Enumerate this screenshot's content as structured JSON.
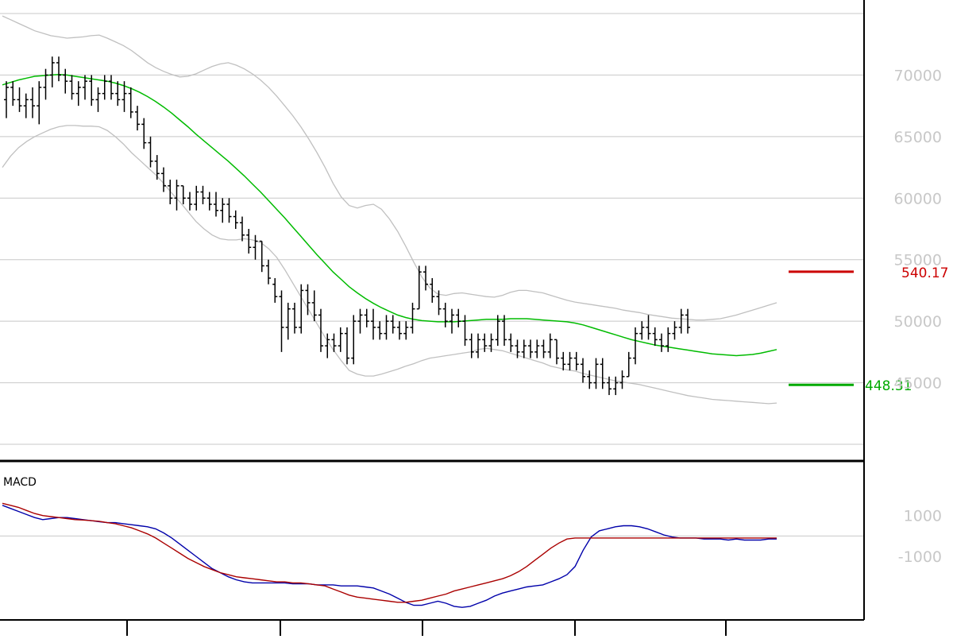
{
  "chart_data": [
    {
      "type": "candlestick",
      "title": "",
      "grid": true,
      "y_ticks": [
        45000,
        50000,
        55000,
        60000,
        65000,
        70000
      ],
      "y_tick_labels": [
        "45000",
        "50000",
        "55000",
        "60000",
        "65000",
        "70000"
      ],
      "ylim": [
        40000,
        75000
      ],
      "x_tick_labels": [
        "",
        "",
        "",
        "",
        ""
      ],
      "levels": [
        {
          "label": "540.17",
          "value": 54017,
          "color": "#cc0000"
        },
        {
          "label": "448.31",
          "value": 44831,
          "color": "#00aa00"
        }
      ],
      "bars": [
        [
          68000,
          69500,
          66500,
          69000
        ],
        [
          69000,
          69500,
          67500,
          68000
        ],
        [
          68000,
          69000,
          67000,
          67500
        ],
        [
          67500,
          68500,
          66500,
          68000
        ],
        [
          68000,
          69000,
          66500,
          67500
        ],
        [
          67500,
          69500,
          66000,
          69000
        ],
        [
          69000,
          70500,
          68000,
          70000
        ],
        [
          70000,
          71500,
          69000,
          71000
        ],
        [
          71000,
          71500,
          69500,
          70000
        ],
        [
          70000,
          70500,
          68500,
          69500
        ],
        [
          69500,
          70000,
          68000,
          68500
        ],
        [
          68500,
          69500,
          67500,
          69000
        ],
        [
          69000,
          70000,
          68000,
          69500
        ],
        [
          69500,
          70000,
          67500,
          68000
        ],
        [
          68000,
          69000,
          67000,
          68500
        ],
        [
          68500,
          70000,
          68000,
          69500
        ],
        [
          69500,
          70000,
          68000,
          68500
        ],
        [
          68500,
          69500,
          67500,
          68000
        ],
        [
          68000,
          69500,
          67000,
          68500
        ],
        [
          68500,
          69000,
          66500,
          67000
        ],
        [
          67000,
          67500,
          65500,
          66000
        ],
        [
          66000,
          66500,
          64000,
          64500
        ],
        [
          64500,
          65000,
          62500,
          63000
        ],
        [
          63000,
          63500,
          61500,
          62000
        ],
        [
          62000,
          62500,
          60500,
          61000
        ],
        [
          61000,
          61500,
          59500,
          60000
        ],
        [
          60000,
          61500,
          59000,
          61000
        ],
        [
          61000,
          61000,
          59500,
          60000
        ],
        [
          60000,
          60500,
          59000,
          59500
        ],
        [
          59500,
          61000,
          59000,
          60500
        ],
        [
          60500,
          61000,
          59500,
          60000
        ],
        [
          60000,
          60500,
          59000,
          59500
        ],
        [
          59500,
          60500,
          58500,
          59000
        ],
        [
          59000,
          60000,
          58000,
          59500
        ],
        [
          59500,
          60000,
          58000,
          58500
        ],
        [
          58500,
          59000,
          57500,
          58000
        ],
        [
          58000,
          58500,
          56500,
          57000
        ],
        [
          57000,
          57500,
          55500,
          56000
        ],
        [
          56000,
          57000,
          55000,
          56500
        ],
        [
          56500,
          56500,
          54000,
          54500
        ],
        [
          54500,
          55000,
          53000,
          53500
        ],
        [
          53000,
          53500,
          51500,
          52000
        ],
        [
          52000,
          52500,
          47500,
          49500
        ],
        [
          49500,
          51500,
          48500,
          51000
        ],
        [
          51000,
          51500,
          49000,
          49500
        ],
        [
          49500,
          53000,
          49000,
          52500
        ],
        [
          52500,
          53000,
          50500,
          51500
        ],
        [
          51500,
          52500,
          50000,
          50500
        ],
        [
          50500,
          51000,
          47500,
          48000
        ],
        [
          48000,
          49000,
          47000,
          48500
        ],
        [
          48500,
          49000,
          47500,
          48000
        ],
        [
          48000,
          49500,
          47500,
          49000
        ],
        [
          49000,
          49500,
          46500,
          47000
        ],
        [
          47000,
          50500,
          46500,
          50000
        ],
        [
          50000,
          51000,
          49000,
          50500
        ],
        [
          50500,
          51000,
          49500,
          50000
        ],
        [
          50000,
          51000,
          48500,
          49500
        ],
        [
          49500,
          50000,
          48500,
          49000
        ],
        [
          49000,
          50500,
          48500,
          50000
        ],
        [
          50000,
          50500,
          49000,
          49500
        ],
        [
          49500,
          50000,
          48500,
          49000
        ],
        [
          49000,
          50000,
          48500,
          49500
        ],
        [
          49500,
          51500,
          49000,
          51000
        ],
        [
          51000,
          54500,
          51000,
          54000
        ],
        [
          54000,
          54500,
          52500,
          53000
        ],
        [
          53000,
          53500,
          51500,
          52000
        ],
        [
          52000,
          52500,
          50500,
          51000
        ],
        [
          51000,
          51500,
          49500,
          50000
        ],
        [
          50000,
          51000,
          49000,
          50500
        ],
        [
          50500,
          51000,
          49500,
          50000
        ],
        [
          50000,
          50500,
          48000,
          48500
        ],
        [
          48500,
          49000,
          47000,
          47500
        ],
        [
          47500,
          49000,
          47000,
          48500
        ],
        [
          48500,
          49000,
          47500,
          48000
        ],
        [
          48000,
          49000,
          47500,
          48500
        ],
        [
          48500,
          50500,
          48000,
          50000
        ],
        [
          50000,
          50500,
          48000,
          48500
        ],
        [
          48500,
          49000,
          47500,
          48000
        ],
        [
          48000,
          48500,
          47000,
          47500
        ],
        [
          47500,
          48500,
          47000,
          48000
        ],
        [
          48000,
          48500,
          47000,
          47500
        ],
        [
          47500,
          48500,
          47000,
          48000
        ],
        [
          48000,
          48500,
          47000,
          47500
        ],
        [
          47500,
          49000,
          47000,
          48500
        ],
        [
          48500,
          48500,
          46500,
          47000
        ],
        [
          47000,
          47500,
          46000,
          46500
        ],
        [
          46500,
          47500,
          46000,
          47000
        ],
        [
          47000,
          47500,
          46000,
          46500
        ],
        [
          46500,
          47000,
          45000,
          45500
        ],
        [
          45500,
          46000,
          44500,
          45000
        ],
        [
          45000,
          47000,
          44500,
          46500
        ],
        [
          46500,
          47000,
          44500,
          45000
        ],
        [
          45000,
          45500,
          44000,
          44500
        ],
        [
          44500,
          45500,
          44000,
          45000
        ],
        [
          45000,
          46000,
          44500,
          45500
        ],
        [
          45500,
          47500,
          45500,
          47000
        ],
        [
          47000,
          49500,
          46500,
          49000
        ],
        [
          49000,
          50000,
          48500,
          49500
        ],
        [
          49500,
          50500,
          48500,
          49000
        ],
        [
          49000,
          49500,
          48000,
          48500
        ],
        [
          48500,
          49000,
          47500,
          48000
        ],
        [
          48000,
          49500,
          47500,
          49000
        ],
        [
          49000,
          50000,
          48500,
          49500
        ],
        [
          49500,
          51000,
          49000,
          50500
        ],
        [
          50500,
          51000,
          49000,
          49500
        ]
      ],
      "series": [
        {
          "type": "line",
          "color": "#00bb00",
          "values": [
            69200,
            69400,
            69600,
            69750,
            69900,
            69950,
            70000,
            70050,
            70000,
            69900,
            69800,
            69700,
            69600,
            69500,
            69350,
            69150,
            68900,
            68600,
            68250,
            67850,
            67400,
            66900,
            66350,
            65800,
            65200,
            64650,
            64100,
            63550,
            63000,
            62400,
            61800,
            61150,
            60500,
            59800,
            59100,
            58400,
            57650,
            56900,
            56150,
            55400,
            54700,
            54000,
            53400,
            52800,
            52300,
            51850,
            51450,
            51100,
            50800,
            50500,
            50300,
            50150,
            50050,
            50000,
            49950,
            49950,
            49950,
            50000,
            50050,
            50100,
            50150,
            50150,
            50150,
            50200,
            50200,
            50200,
            50150,
            50100,
            50050,
            50000,
            49950,
            49850,
            49700,
            49500,
            49300,
            49100,
            48900,
            48700,
            48500,
            48350,
            48200,
            48050,
            47950,
            47850,
            47750,
            47650,
            47550,
            47450,
            47350,
            47300,
            47250,
            47200,
            47250,
            47300,
            47400,
            47550,
            47700
          ]
        },
        {
          "type": "line",
          "color": "#c0c0c0",
          "values": [
            74800,
            74500,
            74200,
            73900,
            73600,
            73400,
            73200,
            73100,
            73000,
            73050,
            73100,
            73200,
            73250,
            73000,
            72700,
            72400,
            72000,
            71500,
            71000,
            70600,
            70300,
            70050,
            69850,
            69900,
            70100,
            70400,
            70700,
            70900,
            71000,
            70800,
            70500,
            70100,
            69600,
            69000,
            68300,
            67500,
            66700,
            65800,
            64800,
            63700,
            62500,
            61200,
            60100,
            59400,
            59200,
            59400,
            59500,
            59100,
            58300,
            57300,
            56100,
            54800,
            53600,
            52700,
            52200,
            52100,
            52250,
            52300,
            52200,
            52100,
            52000,
            51950,
            52100,
            52350,
            52500,
            52500,
            52400,
            52300,
            52100,
            51900,
            51700,
            51550,
            51450,
            51350,
            51250,
            51150,
            51050,
            50900,
            50800,
            50700,
            50550,
            50450,
            50350,
            50250,
            50200,
            50150,
            50100,
            50100,
            50150,
            50200,
            50350,
            50500,
            50700,
            50900,
            51100,
            51300,
            51500
          ]
        },
        {
          "type": "line",
          "color": "#c0c0c0",
          "values": [
            62500,
            63400,
            64100,
            64600,
            65000,
            65300,
            65600,
            65800,
            65900,
            65900,
            65850,
            65850,
            65800,
            65500,
            65000,
            64400,
            63700,
            63100,
            62500,
            61900,
            61200,
            60400,
            59700,
            58900,
            58100,
            57500,
            57000,
            56700,
            56600,
            56600,
            56700,
            56600,
            56400,
            55900,
            55200,
            54200,
            53100,
            52000,
            50900,
            49800,
            48700,
            47700,
            46800,
            46000,
            45700,
            45550,
            45550,
            45700,
            45900,
            46100,
            46350,
            46550,
            46800,
            47000,
            47100,
            47200,
            47300,
            47400,
            47500,
            47700,
            47800,
            47700,
            47600,
            47400,
            47200,
            47000,
            46800,
            46600,
            46350,
            46200,
            46050,
            45950,
            45750,
            45600,
            45450,
            45300,
            45150,
            45050,
            44950,
            44850,
            44700,
            44550,
            44400,
            44250,
            44100,
            43950,
            43850,
            43750,
            43650,
            43600,
            43550,
            43500,
            43450,
            43400,
            43350,
            43300,
            43350
          ]
        }
      ]
    },
    {
      "type": "line",
      "title": "MACD",
      "y_ticks": [
        1000,
        -1000
      ],
      "y_tick_labels": [
        "1000",
        "-1000"
      ],
      "ylim": [
        -4000,
        2000
      ],
      "series": [
        {
          "color": "#0000aa",
          "values": [
            1500,
            1350,
            1200,
            1050,
            900,
            800,
            850,
            900,
            900,
            850,
            800,
            750,
            700,
            650,
            650,
            600,
            550,
            500,
            450,
            350,
            150,
            -100,
            -400,
            -700,
            -1000,
            -1300,
            -1600,
            -1800,
            -2000,
            -2150,
            -2250,
            -2300,
            -2300,
            -2300,
            -2300,
            -2300,
            -2350,
            -2350,
            -2350,
            -2400,
            -2400,
            -2400,
            -2450,
            -2450,
            -2450,
            -2500,
            -2550,
            -2700,
            -2850,
            -3050,
            -3250,
            -3400,
            -3400,
            -3300,
            -3200,
            -3300,
            -3450,
            -3500,
            -3450,
            -3300,
            -3150,
            -2950,
            -2800,
            -2700,
            -2600,
            -2500,
            -2450,
            -2400,
            -2250,
            -2100,
            -1900,
            -1500,
            -700,
            -50,
            250,
            350,
            450,
            500,
            500,
            450,
            350,
            200,
            50,
            -50,
            -100,
            -100,
            -100,
            -150,
            -150,
            -150,
            -200,
            -150,
            -200,
            -200,
            -200,
            -150,
            -150
          ]
        },
        {
          "color": "#aa0000",
          "values": [
            1600,
            1500,
            1400,
            1250,
            1100,
            1000,
            950,
            900,
            850,
            800,
            780,
            750,
            720,
            650,
            600,
            500,
            400,
            250,
            100,
            -100,
            -350,
            -600,
            -850,
            -1100,
            -1300,
            -1500,
            -1650,
            -1800,
            -1900,
            -2000,
            -2050,
            -2100,
            -2150,
            -2200,
            -2250,
            -2250,
            -2300,
            -2300,
            -2350,
            -2400,
            -2450,
            -2600,
            -2750,
            -2900,
            -3000,
            -3050,
            -3100,
            -3150,
            -3200,
            -3250,
            -3250,
            -3200,
            -3150,
            -3050,
            -2950,
            -2850,
            -2700,
            -2600,
            -2500,
            -2400,
            -2300,
            -2200,
            -2100,
            -1950,
            -1750,
            -1500,
            -1200,
            -900,
            -600,
            -350,
            -150,
            -100,
            -100,
            -100,
            -100,
            -100,
            -100,
            -100,
            -100,
            -100,
            -100,
            -100,
            -100,
            -100,
            -100,
            -100,
            -100,
            -100,
            -100,
            -100,
            -100,
            -100,
            -100,
            -100,
            -100,
            -100,
            -100
          ]
        }
      ]
    }
  ]
}
